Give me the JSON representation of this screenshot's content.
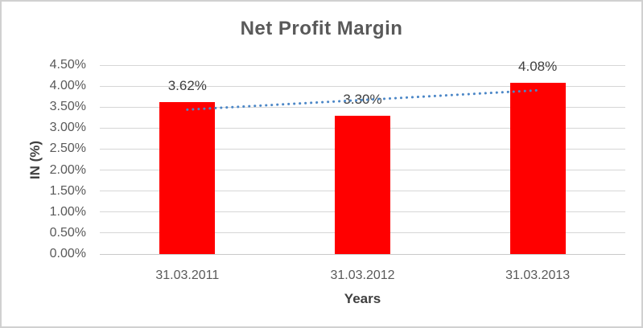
{
  "chart_data": {
    "type": "bar",
    "title": "Net Profit Margin",
    "categories": [
      "31.03.2011",
      "31.03.2012",
      "31.03.2013"
    ],
    "values": [
      3.62,
      3.3,
      4.08
    ],
    "data_labels": [
      "3.62%",
      "3.30%",
      "4.08%"
    ],
    "xlabel": "Years",
    "ylabel": "IN (%)",
    "ylim": [
      0,
      4.5
    ],
    "ytick_step": 0.5,
    "ytick_labels": [
      "0.00%",
      "0.50%",
      "1.00%",
      "1.50%",
      "2.00%",
      "2.50%",
      "3.00%",
      "3.50%",
      "4.00%",
      "4.50%"
    ],
    "grid": true,
    "legend": "none",
    "trendline": {
      "type": "linear",
      "style": "dotted",
      "start_value": 3.44,
      "end_value": 3.9
    },
    "colors": {
      "bar": "#FF0000",
      "trendline": "#4C87C7",
      "gridline": "#D6D6D6",
      "axis_line": "#C9C9C9",
      "title_text": "#595959",
      "tick_text": "#595959",
      "label_text": "#3F3F3F",
      "frame_border": "#D0D0D0"
    }
  }
}
